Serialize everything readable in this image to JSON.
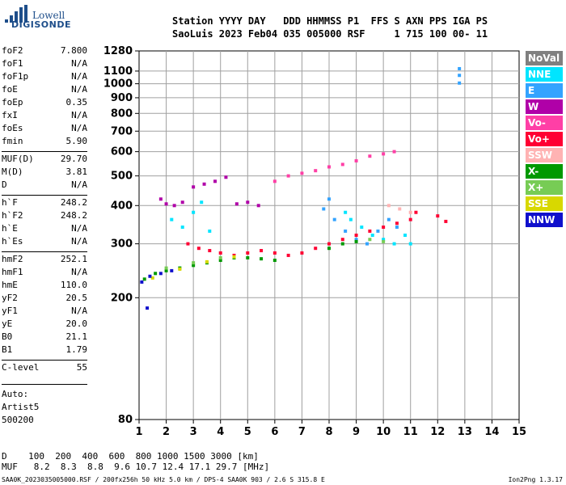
{
  "logo": {
    "line1": "Lowell",
    "line2": "DIGISONDE"
  },
  "header": {
    "line1": "Station YYYY DAY   DDD HHMMSS P1  FFS S AXN PPS IGA PS",
    "line2": "SaoLuis 2023 Feb04 035 005000 RSF     1 715 100 00- 11"
  },
  "params": [
    {
      "name": "foF2",
      "value": "7.800"
    },
    {
      "name": "foF1",
      "value": "N/A"
    },
    {
      "name": "foF1p",
      "value": "N/A"
    },
    {
      "name": "foE",
      "value": "N/A"
    },
    {
      "name": "foEp",
      "value": "0.35"
    },
    {
      "name": "fxI",
      "value": "N/A"
    },
    {
      "name": "foEs",
      "value": "N/A"
    },
    {
      "name": "fmin",
      "value": "5.90"
    },
    {
      "name": "MUF(D)",
      "value": "29.70"
    },
    {
      "name": "M(D)",
      "value": "3.81"
    },
    {
      "name": "D",
      "value": "N/A"
    },
    {
      "name": "h`F",
      "value": "248.2"
    },
    {
      "name": "h`F2",
      "value": "248.2"
    },
    {
      "name": "h`E",
      "value": "N/A"
    },
    {
      "name": "h`Es",
      "value": "N/A"
    },
    {
      "name": "hmF2",
      "value": "252.1"
    },
    {
      "name": "hmF1",
      "value": "N/A"
    },
    {
      "name": "hmE",
      "value": "110.0"
    },
    {
      "name": "yF2",
      "value": "20.5"
    },
    {
      "name": "yF1",
      "value": "N/A"
    },
    {
      "name": "yE",
      "value": "20.0"
    },
    {
      "name": "B0",
      "value": "21.1"
    },
    {
      "name": "B1",
      "value": "1.79"
    },
    {
      "name": "C-level",
      "value": "55"
    }
  ],
  "auto": {
    "line1": "Auto:",
    "line2": "Artist5",
    "line3": "500200"
  },
  "legend": [
    {
      "label": "NoVal",
      "color": "#808080"
    },
    {
      "label": "NNE",
      "color": "#00e5ff"
    },
    {
      "label": "E",
      "color": "#33a3ff"
    },
    {
      "label": "W",
      "color": "#b000a8"
    },
    {
      "label": "Vo-",
      "color": "#ff3fa6"
    },
    {
      "label": "Vo+",
      "color": "#ff0033"
    },
    {
      "label": "SSW",
      "color": "#ffb3b3"
    },
    {
      "label": "X-",
      "color": "#009900"
    },
    {
      "label": "X+",
      "color": "#77cc55"
    },
    {
      "label": "SSE",
      "color": "#d8d800"
    },
    {
      "label": "NNW",
      "color": "#1010cc"
    }
  ],
  "bottom": {
    "line1": "D    100  200  400  600  800 1000 1500 3000 [km]",
    "line2": "MUF   8.2  8.3  8.8  9.6 10.7 12.4 17.1 29.7 [MHz]",
    "footer": "SAA0K_2023035005000.RSF / 200fx256h 50 kHz 5.0 km / DPS-4 SAA0K 903 / 2.6 S 315.8 E",
    "version": "Ion2Png 1.3.17"
  },
  "chart_data": {
    "type": "scatter",
    "xlim": [
      1,
      15
    ],
    "ylim": [
      80,
      1280
    ],
    "yscale": "log",
    "x_ticks": [
      1,
      2,
      3,
      4,
      5,
      6,
      7,
      8,
      9,
      10,
      11,
      12,
      13,
      14,
      15
    ],
    "y_ticks": [
      80,
      200,
      300,
      400,
      500,
      600,
      700,
      800,
      900,
      1000,
      1100,
      1280
    ],
    "grid": true,
    "series": [
      {
        "name": "NNE",
        "points": [
          [
            2.2,
            360
          ],
          [
            2.6,
            340
          ],
          [
            3.0,
            380
          ],
          [
            3.3,
            410
          ],
          [
            3.6,
            330
          ],
          [
            8.6,
            380
          ],
          [
            8.8,
            360
          ],
          [
            9.2,
            340
          ],
          [
            9.6,
            320
          ],
          [
            10.0,
            310
          ],
          [
            10.4,
            300
          ],
          [
            10.8,
            320
          ],
          [
            11.0,
            300
          ]
        ]
      },
      {
        "name": "E",
        "points": [
          [
            7.8,
            390
          ],
          [
            8.0,
            420
          ],
          [
            8.2,
            360
          ],
          [
            8.6,
            330
          ],
          [
            9.0,
            310
          ],
          [
            9.4,
            300
          ],
          [
            9.8,
            330
          ],
          [
            10.2,
            360
          ],
          [
            10.5,
            340
          ],
          [
            12.8,
            1120
          ],
          [
            12.8,
            1065
          ],
          [
            12.8,
            1005
          ]
        ]
      },
      {
        "name": "W",
        "points": [
          [
            1.8,
            420
          ],
          [
            2.0,
            405
          ],
          [
            2.3,
            400
          ],
          [
            2.6,
            410
          ],
          [
            3.0,
            460
          ],
          [
            3.4,
            470
          ],
          [
            3.8,
            480
          ],
          [
            4.2,
            495
          ],
          [
            4.6,
            405
          ],
          [
            5.0,
            410
          ],
          [
            5.4,
            400
          ]
        ]
      },
      {
        "name": "Vo-",
        "points": [
          [
            6.0,
            480
          ],
          [
            6.5,
            500
          ],
          [
            7.0,
            510
          ],
          [
            7.5,
            520
          ],
          [
            8.0,
            535
          ],
          [
            8.5,
            545
          ],
          [
            9.0,
            560
          ],
          [
            9.5,
            580
          ],
          [
            10.0,
            590
          ],
          [
            10.4,
            600
          ]
        ]
      },
      {
        "name": "Vo+",
        "points": [
          [
            2.8,
            300
          ],
          [
            3.2,
            290
          ],
          [
            3.6,
            285
          ],
          [
            4.0,
            280
          ],
          [
            4.5,
            275
          ],
          [
            5.0,
            280
          ],
          [
            5.5,
            285
          ],
          [
            6.0,
            280
          ],
          [
            6.5,
            275
          ],
          [
            7.0,
            280
          ],
          [
            7.5,
            290
          ],
          [
            8.0,
            300
          ],
          [
            8.5,
            310
          ],
          [
            9.0,
            320
          ],
          [
            9.5,
            330
          ],
          [
            10.0,
            340
          ],
          [
            10.5,
            350
          ],
          [
            11.0,
            360
          ],
          [
            11.2,
            380
          ],
          [
            12.0,
            370
          ],
          [
            12.3,
            355
          ]
        ]
      },
      {
        "name": "SSW",
        "points": [
          [
            10.2,
            400
          ],
          [
            10.6,
            390
          ],
          [
            11.0,
            380
          ]
        ]
      },
      {
        "name": "X-",
        "points": [
          [
            1.2,
            230
          ],
          [
            1.6,
            240
          ],
          [
            2.0,
            245
          ],
          [
            2.5,
            250
          ],
          [
            3.0,
            255
          ],
          [
            3.5,
            260
          ],
          [
            4.0,
            265
          ],
          [
            4.5,
            270
          ],
          [
            5.0,
            270
          ],
          [
            5.5,
            268
          ],
          [
            6.0,
            265
          ],
          [
            8.0,
            290
          ],
          [
            8.5,
            300
          ],
          [
            9.0,
            305
          ]
        ]
      },
      {
        "name": "X+",
        "points": [
          [
            2.0,
            250
          ],
          [
            3.0,
            260
          ],
          [
            4.0,
            270
          ],
          [
            9.5,
            310
          ],
          [
            10.0,
            305
          ]
        ]
      },
      {
        "name": "SSE",
        "points": [
          [
            1.5,
            232
          ],
          [
            2.5,
            248
          ],
          [
            3.5,
            262
          ],
          [
            4.5,
            272
          ]
        ]
      },
      {
        "name": "NNW",
        "points": [
          [
            1.1,
            225
          ],
          [
            1.4,
            235
          ],
          [
            1.8,
            240
          ],
          [
            2.2,
            245
          ],
          [
            1.3,
            185
          ]
        ]
      }
    ]
  }
}
